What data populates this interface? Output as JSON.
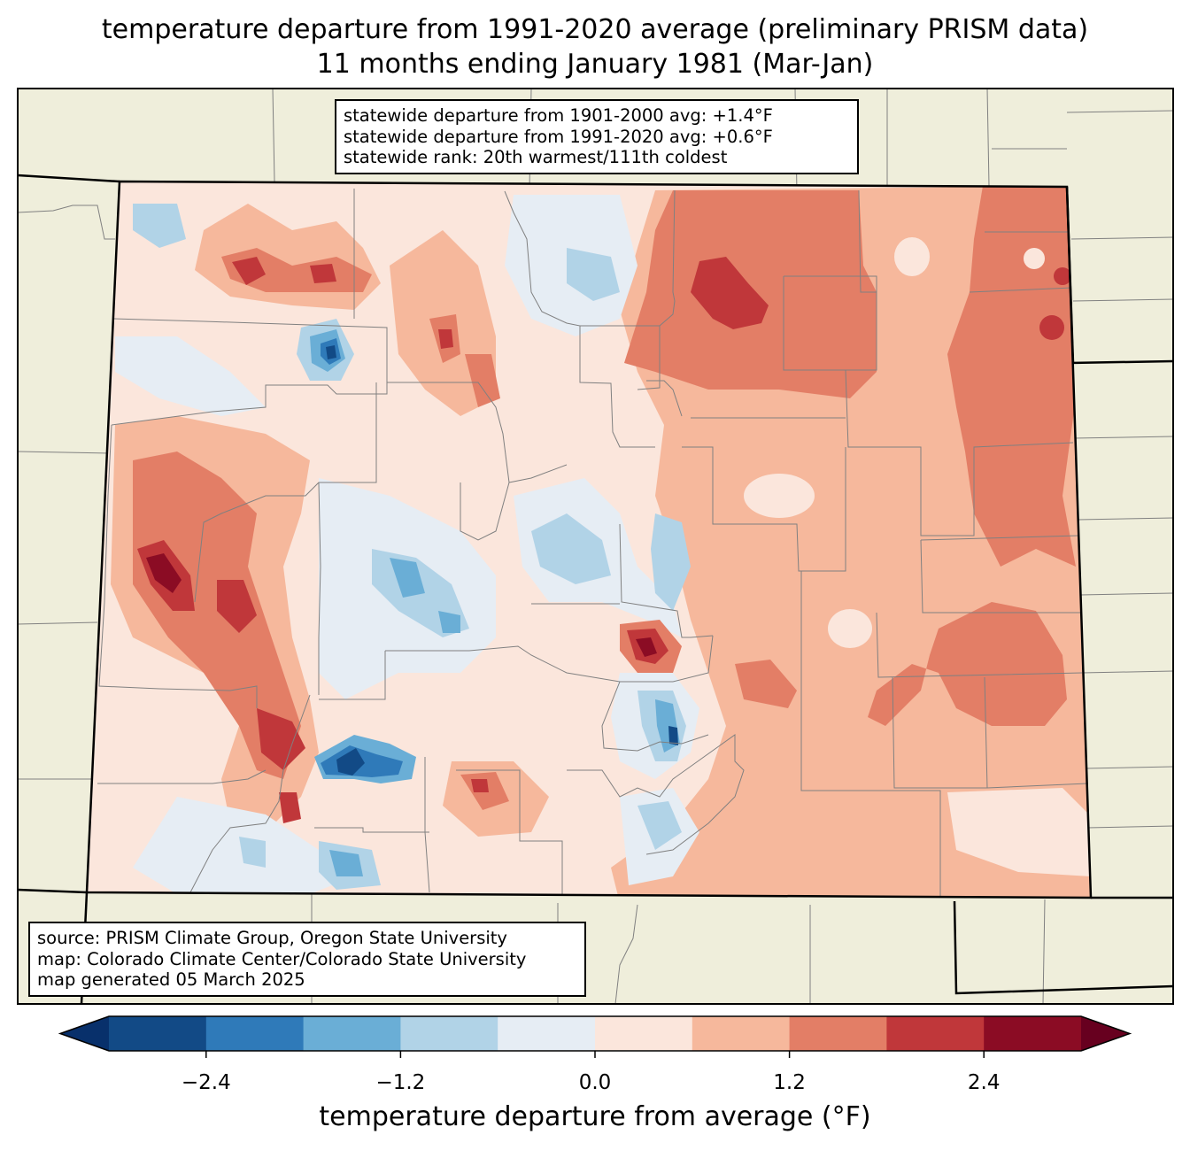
{
  "title_line1": "temperature departure from 1991-2020 average (preliminary PRISM data)",
  "title_line2": "11 months ending January 1981 (Mar-Jan)",
  "stats": {
    "line1": "statewide departure from 1901-2000 avg: +1.4°F",
    "line2": "statewide departure from 1991-2020 avg: +0.6°F",
    "line3": "statewide rank: 20th warmest/111th coldest"
  },
  "source": {
    "line1": "source: PRISM Climate Group, Oregon State University",
    "line2": "map: Colorado Climate Center/Colorado State University",
    "line3": "map generated 05 March 2025"
  },
  "colorbar": {
    "title": "temperature departure from average (°F)",
    "ticks": [
      "−2.4",
      "−1.2",
      "0.0",
      "1.2",
      "2.4"
    ],
    "colors": [
      "#08306b",
      "#124a86",
      "#2f7ab9",
      "#6aaed6",
      "#b1d3e7",
      "#e6edf4",
      "#fbe6dc",
      "#f6b89c",
      "#e37e66",
      "#c0373a",
      "#8b0c24",
      "#67001f"
    ]
  },
  "colors": {
    "land": "#efeedb",
    "state_border": "#000000",
    "county_border": "#808080"
  }
}
